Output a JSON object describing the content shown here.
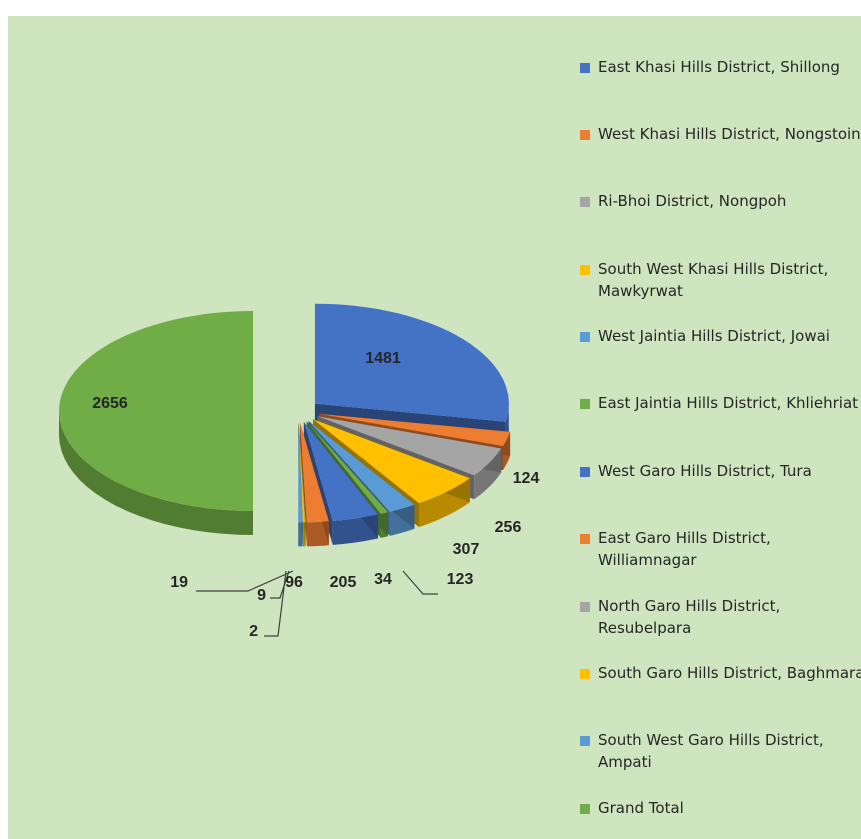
{
  "chart_data": {
    "type": "pie",
    "title": "",
    "legend_position": "right",
    "slices": [
      {
        "label": "East Khasi Hills District, Shillong",
        "value": 1481,
        "color": "#4472c4"
      },
      {
        "label": "West Khasi Hills District, Nongstoin",
        "value": 124,
        "color": "#ed7d31"
      },
      {
        "label": "Ri-Bhoi District, Nongpoh",
        "value": 256,
        "color": "#a5a5a5"
      },
      {
        "label": "South West Khasi Hills District, Mawkyrwat",
        "value": 307,
        "color": "#ffc000"
      },
      {
        "label": "West Jaintia Hills District, Jowai",
        "value": 123,
        "color": "#5b9bd5"
      },
      {
        "label": "East Jaintia Hills District, Khliehriat",
        "value": 34,
        "color": "#70ad47"
      },
      {
        "label": "West Garo Hills District, Tura",
        "value": 205,
        "color": "#4472c4"
      },
      {
        "label": "East Garo Hills District, Williamnagar",
        "value": 96,
        "color": "#ed7d31"
      },
      {
        "label": "North Garo Hills District, Resubelpara",
        "value": 2,
        "color": "#a5a5a5"
      },
      {
        "label": "South Garo Hills District, Baghmara",
        "value": 9,
        "color": "#ffc000"
      },
      {
        "label": "South West Garo Hills District, Ampati",
        "value": 19,
        "color": "#5b9bd5"
      },
      {
        "label": "Grand Total",
        "value": 2656,
        "color": "#70ad47"
      }
    ]
  }
}
